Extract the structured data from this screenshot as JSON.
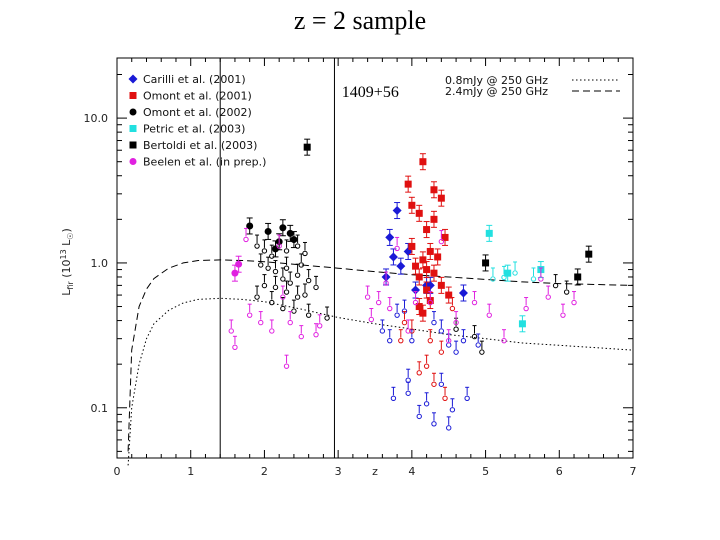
{
  "title": "z = 2 sample",
  "chart_data": {
    "type": "scatter",
    "xlabel": "z",
    "ylabel": "L_fir (10^13 L_☉)",
    "ylabel_parts": {
      "main": "L",
      "sub": "fir",
      "open": "(10",
      "sup": "13",
      "unit": " L",
      "unit_sub": "☉",
      "close": ")"
    },
    "xlim": [
      0,
      7
    ],
    "ylim_log": [
      0.045,
      26
    ],
    "y_scale": "log",
    "x_ticks": [
      0,
      1,
      2,
      3,
      4,
      5,
      6,
      7
    ],
    "x_tick_labels": [
      "0",
      "1",
      "2",
      "3",
      "4",
      "5",
      "6",
      "7"
    ],
    "y_ticks": [
      0.1,
      1.0,
      10.0
    ],
    "y_tick_labels": [
      "0.1",
      "1.0",
      "10.0"
    ],
    "vertical_lines": [
      1.4,
      2.95
    ],
    "annotation": {
      "text": "1409+56",
      "x": 3.05,
      "y": 14.0
    },
    "curves": [
      {
        "name": "0.8mJy @ 250 GHz",
        "style": "dotted",
        "x": [
          0.15,
          0.2,
          0.3,
          0.4,
          0.5,
          0.7,
          0.9,
          1.1,
          1.4,
          1.7,
          2.0,
          2.5,
          3.0,
          3.5,
          4.0,
          4.5,
          5.0,
          5.5,
          6.0,
          6.5,
          7.0
        ],
        "y": [
          0.04,
          0.1,
          0.2,
          0.3,
          0.38,
          0.47,
          0.53,
          0.56,
          0.57,
          0.56,
          0.54,
          0.48,
          0.42,
          0.38,
          0.35,
          0.32,
          0.3,
          0.28,
          0.27,
          0.26,
          0.25
        ]
      },
      {
        "name": "2.4mJy @ 250 GHz",
        "style": "dashed",
        "x": [
          0.15,
          0.2,
          0.3,
          0.4,
          0.5,
          0.7,
          0.9,
          1.1,
          1.4,
          1.7,
          2.0,
          2.5,
          3.0,
          3.5,
          4.0,
          4.5,
          5.0,
          5.5,
          6.0,
          6.5,
          7.0
        ],
        "y": [
          0.05,
          0.25,
          0.5,
          0.66,
          0.78,
          0.92,
          1.0,
          1.04,
          1.05,
          1.04,
          1.02,
          0.97,
          0.92,
          0.87,
          0.83,
          0.8,
          0.77,
          0.74,
          0.72,
          0.71,
          0.7
        ]
      }
    ],
    "series": [
      {
        "name": "Carilli et al. (2001)",
        "color": "#1a1ad6",
        "marker": "diamond",
        "detections": [
          [
            3.7,
            1.5
          ],
          [
            3.8,
            2.3
          ],
          [
            3.95,
            1.2
          ],
          [
            4.2,
            0.7
          ],
          [
            3.65,
            0.8
          ],
          [
            4.05,
            0.65
          ],
          [
            4.25,
            0.7
          ],
          [
            4.7,
            0.62
          ],
          [
            3.85,
            0.95
          ],
          [
            3.75,
            1.1
          ]
        ],
        "limits": [
          [
            3.6,
            0.35
          ],
          [
            3.7,
            0.3
          ],
          [
            3.8,
            0.45
          ],
          [
            3.9,
            0.48
          ],
          [
            4.0,
            0.3
          ],
          [
            4.3,
            0.4
          ],
          [
            4.4,
            0.35
          ],
          [
            4.5,
            0.28
          ],
          [
            4.6,
            0.25
          ],
          [
            4.7,
            0.3
          ],
          [
            4.9,
            0.28
          ],
          [
            3.75,
            0.12
          ],
          [
            3.95,
            0.13
          ],
          [
            4.2,
            0.11
          ],
          [
            4.4,
            0.15
          ],
          [
            4.55,
            0.1
          ],
          [
            4.75,
            0.12
          ],
          [
            4.1,
            0.09
          ],
          [
            4.3,
            0.08
          ],
          [
            4.5,
            0.075
          ],
          [
            3.95,
            0.16
          ]
        ]
      },
      {
        "name": "Omont et al. (2001)",
        "color": "#e01010",
        "marker": "square",
        "detections": [
          [
            4.15,
            5.0
          ],
          [
            3.95,
            3.5
          ],
          [
            4.3,
            3.2
          ],
          [
            4.4,
            2.8
          ],
          [
            4.0,
            2.5
          ],
          [
            4.1,
            2.2
          ],
          [
            4.3,
            2.0
          ],
          [
            4.2,
            1.7
          ],
          [
            4.45,
            1.5
          ],
          [
            4.0,
            1.3
          ],
          [
            4.25,
            1.2
          ],
          [
            4.35,
            1.1
          ],
          [
            4.15,
            1.05
          ],
          [
            4.05,
            0.95
          ],
          [
            4.2,
            0.9
          ],
          [
            4.3,
            0.85
          ],
          [
            4.1,
            0.8
          ],
          [
            4.4,
            0.7
          ],
          [
            4.2,
            0.65
          ],
          [
            4.25,
            0.55
          ],
          [
            4.5,
            0.6
          ],
          [
            4.1,
            0.5
          ],
          [
            4.15,
            0.45
          ]
        ],
        "limits": [
          [
            3.9,
            0.4
          ],
          [
            4.0,
            0.35
          ],
          [
            4.25,
            0.3
          ],
          [
            4.4,
            0.25
          ],
          [
            4.2,
            0.2
          ],
          [
            4.1,
            0.18
          ],
          [
            4.3,
            0.15
          ],
          [
            4.45,
            0.12
          ],
          [
            3.85,
            0.3
          ],
          [
            4.55,
            0.5
          ]
        ]
      },
      {
        "name": "Omont et al. (2002)",
        "color": "#000000",
        "marker": "circle",
        "detections": [
          [
            1.8,
            1.8
          ],
          [
            2.05,
            1.65
          ],
          [
            2.25,
            1.75
          ],
          [
            2.35,
            1.6
          ],
          [
            2.2,
            1.4
          ],
          [
            2.4,
            1.45
          ],
          [
            2.15,
            1.25
          ]
        ],
        "limits": [
          [
            1.9,
            1.35
          ],
          [
            2.0,
            1.25
          ],
          [
            2.1,
            1.15
          ],
          [
            2.3,
            1.25
          ],
          [
            2.45,
            1.35
          ],
          [
            2.55,
            1.2
          ],
          [
            1.95,
            1.0
          ],
          [
            2.05,
            0.95
          ],
          [
            2.15,
            0.9
          ],
          [
            2.3,
            0.95
          ],
          [
            2.5,
            1.0
          ],
          [
            2.25,
            0.8
          ],
          [
            2.35,
            0.75
          ],
          [
            2.45,
            0.85
          ],
          [
            2.6,
            0.78
          ],
          [
            2.0,
            0.72
          ],
          [
            2.15,
            0.7
          ],
          [
            2.3,
            0.65
          ],
          [
            2.45,
            0.6
          ],
          [
            2.55,
            0.62
          ],
          [
            2.7,
            0.7
          ],
          [
            1.9,
            0.6
          ],
          [
            2.1,
            0.55
          ],
          [
            2.25,
            0.5
          ],
          [
            2.4,
            0.48
          ],
          [
            2.6,
            0.45
          ],
          [
            2.85,
            0.43
          ]
        ]
      },
      {
        "name": "Petric et al. (2003)",
        "color": "#22e0e0",
        "marker": "square",
        "detections": [
          [
            5.05,
            1.6
          ],
          [
            5.3,
            0.85
          ],
          [
            5.75,
            0.9
          ],
          [
            5.5,
            0.38
          ]
        ],
        "limits": [
          [
            5.1,
            0.8
          ],
          [
            5.25,
            0.82
          ],
          [
            5.4,
            0.88
          ],
          [
            5.65,
            0.8
          ]
        ]
      },
      {
        "name": "Bertoldi et al. (2003)",
        "color": "#000000",
        "marker": "square",
        "detections": [
          [
            2.58,
            6.3
          ],
          [
            6.4,
            1.15
          ],
          [
            6.25,
            0.8
          ],
          [
            5.0,
            1.0
          ]
        ],
        "limits": [
          [
            6.1,
            0.65
          ],
          [
            5.95,
            0.72
          ],
          [
            4.6,
            0.36
          ],
          [
            4.85,
            0.32
          ],
          [
            4.95,
            0.25
          ]
        ]
      },
      {
        "name": "Beelen et al. (in prep.)",
        "color": "#e020e0",
        "marker": "circle",
        "detections": [
          [
            1.6,
            0.85
          ],
          [
            1.65,
            0.98
          ]
        ],
        "limits": [
          [
            1.55,
            0.35
          ],
          [
            1.6,
            0.27
          ],
          [
            1.8,
            0.45
          ],
          [
            1.95,
            0.4
          ],
          [
            2.1,
            0.35
          ],
          [
            2.35,
            0.4
          ],
          [
            2.25,
            0.6
          ],
          [
            2.5,
            0.32
          ],
          [
            2.7,
            0.33
          ],
          [
            3.4,
            0.6
          ],
          [
            3.45,
            0.42
          ],
          [
            3.55,
            0.55
          ],
          [
            3.65,
            0.75
          ],
          [
            3.7,
            0.5
          ],
          [
            3.8,
            1.3
          ],
          [
            4.05,
            0.55
          ],
          [
            4.5,
            0.3
          ],
          [
            4.85,
            0.55
          ],
          [
            5.05,
            0.45
          ],
          [
            5.55,
            0.5
          ],
          [
            5.75,
            0.8
          ],
          [
            5.85,
            0.6
          ],
          [
            6.05,
            0.45
          ],
          [
            6.2,
            0.55
          ],
          [
            1.75,
            1.5
          ],
          [
            2.2,
            1.35
          ],
          [
            2.3,
            0.2
          ],
          [
            2.75,
            0.38
          ],
          [
            3.95,
            0.35
          ],
          [
            4.4,
            1.45
          ],
          [
            4.25,
            0.55
          ],
          [
            4.6,
            0.4
          ],
          [
            5.25,
            0.3
          ]
        ]
      }
    ]
  }
}
